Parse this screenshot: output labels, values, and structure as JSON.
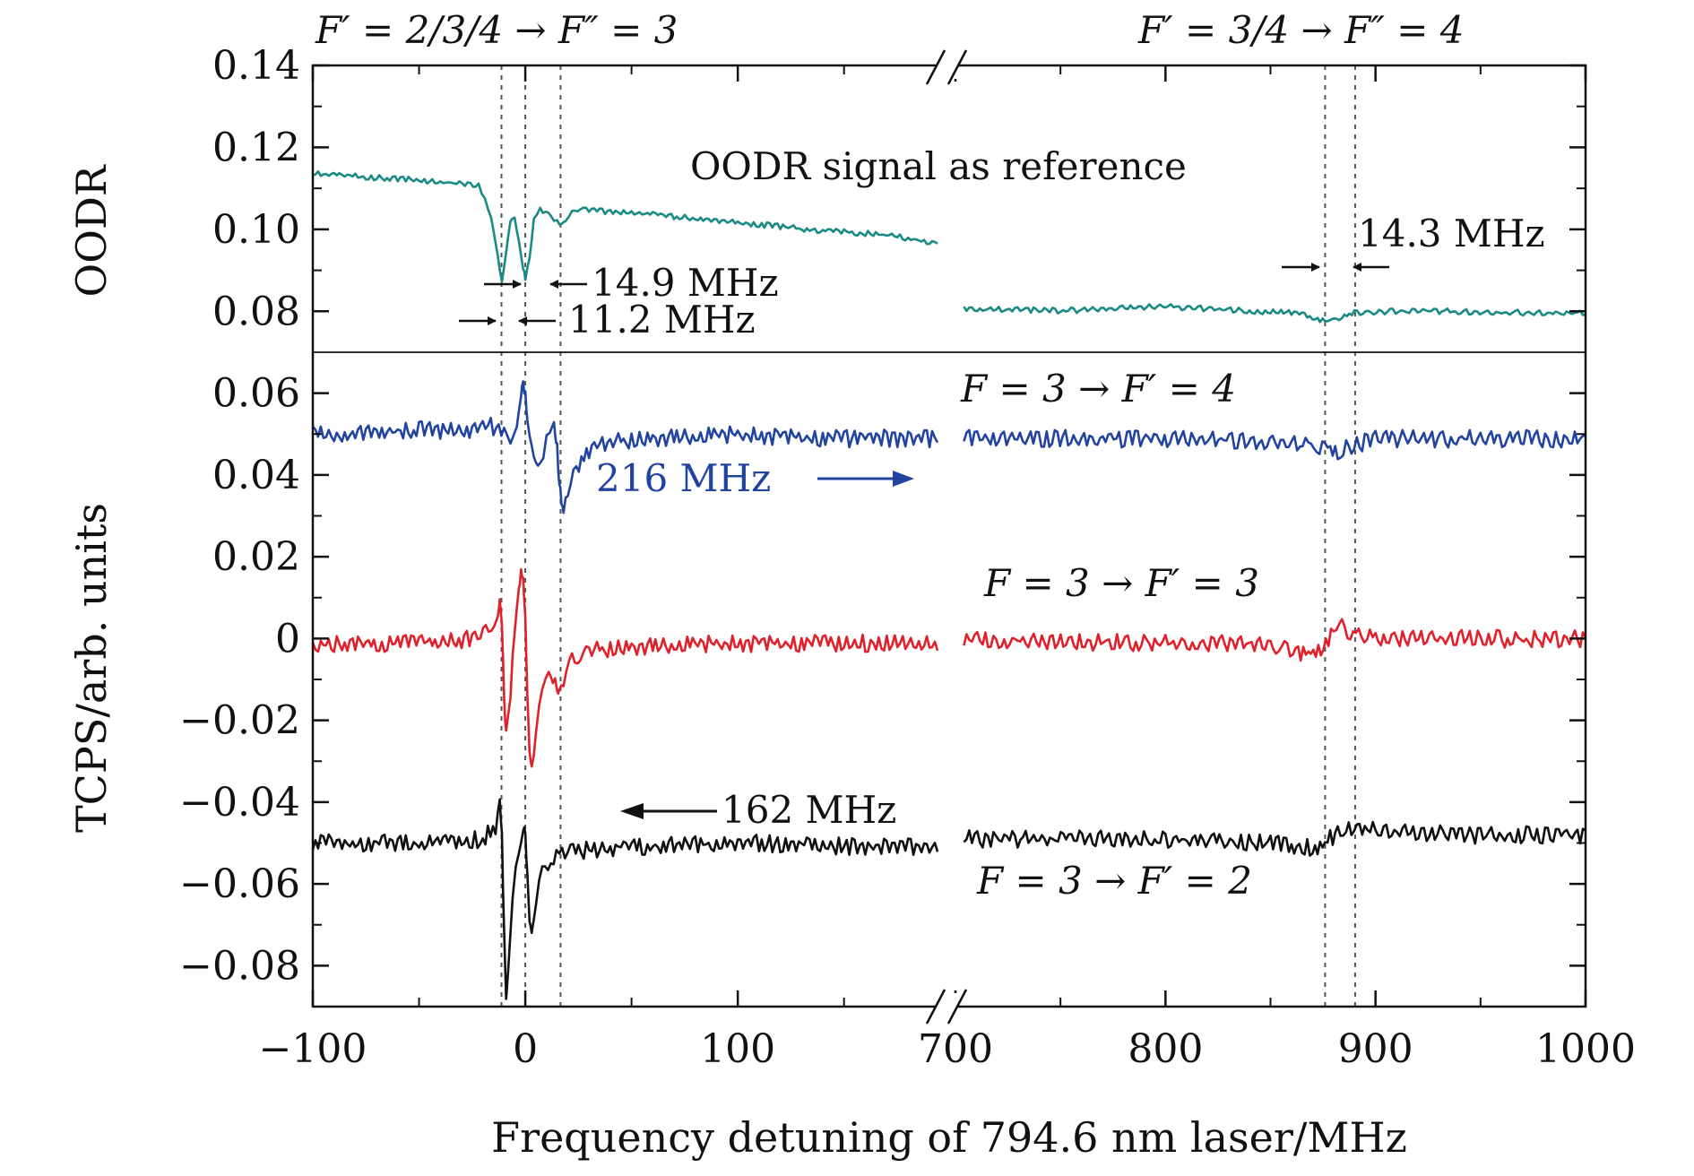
{
  "chart_data": {
    "type": "line",
    "xlabel": "Frequency detuning of 794.6 nm laser/MHz",
    "x_axis": {
      "broken": true,
      "segments": [
        [
          -100,
          194
        ],
        [
          700,
          1000
        ]
      ],
      "ticks": [
        {
          "value": -100,
          "label": "−100"
        },
        {
          "value": 0,
          "label": "0"
        },
        {
          "value": 100,
          "label": "100"
        },
        {
          "value": 700,
          "label": "700"
        },
        {
          "value": 800,
          "label": "800"
        },
        {
          "value": 900,
          "label": "900"
        },
        {
          "value": 1000,
          "label": "1000"
        }
      ],
      "minor_step": 50
    },
    "panels": [
      {
        "id": "oodr",
        "ylabel": "OODR",
        "ylim": [
          0.07,
          0.14
        ],
        "ticks": [
          {
            "value": 0.08,
            "label": "0.08"
          },
          {
            "value": 0.1,
            "label": "0.10"
          },
          {
            "value": 0.12,
            "label": "0.12"
          },
          {
            "value": 0.14,
            "label": "0.14"
          }
        ],
        "minor_step": 0.01
      },
      {
        "id": "tcps",
        "ylabel": "TCPS/arb. units",
        "ylim": [
          -0.09,
          0.07
        ],
        "ticks": [
          {
            "value": 0.06,
            "label": "0.06"
          },
          {
            "value": 0.04,
            "label": "0.04"
          },
          {
            "value": 0.02,
            "label": "0.02"
          },
          {
            "value": 0,
            "label": "0"
          },
          {
            "value": -0.02,
            "label": "−0.02"
          },
          {
            "value": -0.04,
            "label": "−0.04"
          },
          {
            "value": -0.06,
            "label": "−0.06"
          },
          {
            "value": -0.08,
            "label": "−0.08"
          }
        ],
        "minor_step": 0.01
      }
    ],
    "reference_lines": [
      -11.2,
      0,
      16.6,
      876,
      890.3
    ],
    "series": [
      {
        "panel": "oodr",
        "color": "#1a8a84",
        "points_left": [
          [
            -100,
            0.114
          ],
          [
            -70,
            0.113
          ],
          [
            -40,
            0.112
          ],
          [
            -22,
            0.111
          ],
          [
            -19,
            0.108
          ],
          [
            -16,
            0.103
          ],
          [
            -13,
            0.094
          ],
          [
            -11,
            0.088
          ],
          [
            -9,
            0.095
          ],
          [
            -7,
            0.102
          ],
          [
            -5,
            0.103
          ],
          [
            -3,
            0.098
          ],
          [
            -1,
            0.091
          ],
          [
            0,
            0.088
          ],
          [
            2,
            0.093
          ],
          [
            4,
            0.103
          ],
          [
            7,
            0.105
          ],
          [
            12,
            0.104
          ],
          [
            15,
            0.102
          ],
          [
            17,
            0.101
          ],
          [
            19,
            0.103
          ],
          [
            22,
            0.105
          ],
          [
            30,
            0.105
          ],
          [
            60,
            0.104
          ],
          [
            100,
            0.102
          ],
          [
            140,
            0.1
          ],
          [
            170,
            0.099
          ],
          [
            194,
            0.097
          ]
        ],
        "points_right": [
          [
            704,
            0.081
          ],
          [
            750,
            0.0805
          ],
          [
            800,
            0.0815
          ],
          [
            840,
            0.0805
          ],
          [
            860,
            0.08
          ],
          [
            870,
            0.079
          ],
          [
            876,
            0.078
          ],
          [
            880,
            0.078
          ],
          [
            884,
            0.079
          ],
          [
            890,
            0.08
          ],
          [
            920,
            0.0805
          ],
          [
            960,
            0.08
          ],
          [
            1000,
            0.08
          ]
        ]
      },
      {
        "panel": "tcps",
        "color": "#2244a0",
        "points_left": [
          [
            -100,
            0.051
          ],
          [
            -60,
            0.052
          ],
          [
            -30,
            0.052
          ],
          [
            -15,
            0.053
          ],
          [
            -10,
            0.051
          ],
          [
            -7,
            0.05
          ],
          [
            -4,
            0.054
          ],
          [
            -2,
            0.059
          ],
          [
            -1,
            0.063
          ],
          [
            0,
            0.062
          ],
          [
            1,
            0.056
          ],
          [
            3,
            0.047
          ],
          [
            5,
            0.043
          ],
          [
            7,
            0.045
          ],
          [
            10,
            0.049
          ],
          [
            13,
            0.052
          ],
          [
            14,
            0.053
          ],
          [
            15,
            0.049
          ],
          [
            16,
            0.039
          ],
          [
            17,
            0.033
          ],
          [
            18,
            0.031
          ],
          [
            20,
            0.036
          ],
          [
            24,
            0.043
          ],
          [
            30,
            0.047
          ],
          [
            40,
            0.049
          ],
          [
            60,
            0.05
          ],
          [
            100,
            0.051
          ],
          [
            150,
            0.05
          ],
          [
            194,
            0.05
          ]
        ],
        "points_right": [
          [
            704,
            0.05
          ],
          [
            760,
            0.05
          ],
          [
            820,
            0.05
          ],
          [
            860,
            0.049
          ],
          [
            876,
            0.048
          ],
          [
            882,
            0.047
          ],
          [
            886,
            0.048
          ],
          [
            900,
            0.05
          ],
          [
            950,
            0.05
          ],
          [
            1000,
            0.05
          ]
        ]
      },
      {
        "panel": "tcps",
        "color": "#e0202a",
        "points_left": [
          [
            -100,
            0.0
          ],
          [
            -50,
            0.0
          ],
          [
            -25,
            0.001
          ],
          [
            -16,
            0.004
          ],
          [
            -13,
            0.008
          ],
          [
            -12,
            0.009
          ],
          [
            -11,
            0.003
          ],
          [
            -10,
            -0.014
          ],
          [
            -9,
            -0.021
          ],
          [
            -7,
            -0.012
          ],
          [
            -5,
            0.002
          ],
          [
            -3,
            0.013
          ],
          [
            -2,
            0.019
          ],
          [
            -1,
            0.017
          ],
          [
            0,
            0.005
          ],
          [
            1,
            -0.015
          ],
          [
            2,
            -0.027
          ],
          [
            3,
            -0.03
          ],
          [
            5,
            -0.022
          ],
          [
            8,
            -0.012
          ],
          [
            11,
            -0.007
          ],
          [
            13,
            -0.008
          ],
          [
            15,
            -0.012
          ],
          [
            16,
            -0.013
          ],
          [
            18,
            -0.009
          ],
          [
            22,
            -0.004
          ],
          [
            30,
            -0.002
          ],
          [
            50,
            -0.001
          ],
          [
            100,
            0.0
          ],
          [
            150,
            0.0
          ],
          [
            194,
            0.0
          ]
        ],
        "points_right": [
          [
            704,
            0.001
          ],
          [
            800,
            0.0
          ],
          [
            850,
            0.0
          ],
          [
            862,
            -0.002
          ],
          [
            868,
            -0.003
          ],
          [
            874,
            -0.001
          ],
          [
            880,
            0.003
          ],
          [
            884,
            0.004
          ],
          [
            888,
            0.002
          ],
          [
            900,
            0.001
          ],
          [
            950,
            0.001
          ],
          [
            1000,
            0.001
          ]
        ]
      },
      {
        "panel": "tcps",
        "color": "#111111",
        "points_left": [
          [
            -100,
            -0.049
          ],
          [
            -50,
            -0.049
          ],
          [
            -20,
            -0.048
          ],
          [
            -14,
            -0.045
          ],
          [
            -12,
            -0.04
          ],
          [
            -11,
            -0.047
          ],
          [
            -10,
            -0.07
          ],
          [
            -9,
            -0.085
          ],
          [
            -8,
            -0.08
          ],
          [
            -6,
            -0.063
          ],
          [
            -3,
            -0.05
          ],
          [
            -1,
            -0.045
          ],
          [
            0,
            -0.048
          ],
          [
            1,
            -0.058
          ],
          [
            2,
            -0.067
          ],
          [
            3,
            -0.069
          ],
          [
            5,
            -0.063
          ],
          [
            8,
            -0.056
          ],
          [
            12,
            -0.053
          ],
          [
            20,
            -0.051
          ],
          [
            40,
            -0.05
          ],
          [
            80,
            -0.049
          ],
          [
            120,
            -0.049
          ],
          [
            160,
            -0.05
          ],
          [
            194,
            -0.05
          ]
        ],
        "points_right": [
          [
            704,
            -0.048
          ],
          [
            800,
            -0.048
          ],
          [
            850,
            -0.049
          ],
          [
            870,
            -0.05
          ],
          [
            876,
            -0.049
          ],
          [
            882,
            -0.046
          ],
          [
            886,
            -0.045
          ],
          [
            900,
            -0.046
          ],
          [
            950,
            -0.047
          ],
          [
            1000,
            -0.047
          ]
        ]
      }
    ],
    "annotations": {
      "hdr_left": "F′ = 2/3/4 → F″ = 3",
      "hdr_right": "F′ = 3/4 → F″ = 4",
      "oodr_ref": "OODR signal as reference",
      "mhz_149": "14.9 MHz",
      "mhz_112": "11.2 MHz",
      "mhz_143": "14.3 MHz",
      "blue_label": "F = 3 → F′ = 4",
      "red_label": "F = 3 → F′ = 3",
      "black_label": "F = 3 → F′ = 2",
      "blue_shift": "216 MHz",
      "black_shift": "162 MHz"
    }
  }
}
